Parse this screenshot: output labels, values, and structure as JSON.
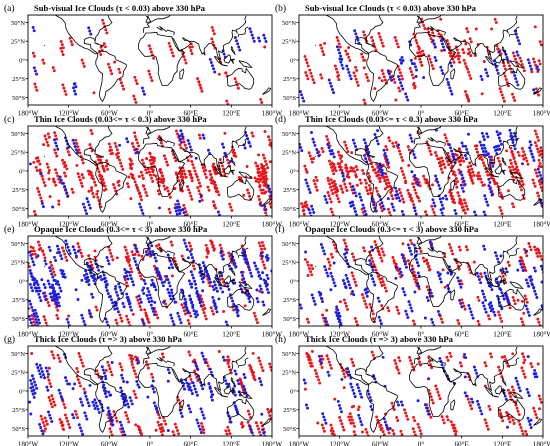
{
  "figure": {
    "x_tick_labels": [
      "180°W",
      "120°W",
      "60°W",
      "0°",
      "60°E",
      "120°E",
      "180°W"
    ],
    "y_tick_labels": [
      "50°N",
      "25°N",
      "0°",
      "25°S",
      "50°S"
    ],
    "colors": {
      "red": "#e8141c",
      "blue": "#1d1de0",
      "coast": "#000000"
    }
  },
  "panels": [
    {
      "label": "(a)",
      "title": "Sub-visual Ice Clouds (τ < 0.03) above 330 hPa",
      "red_density": "low",
      "blue_density": "very low"
    },
    {
      "label": "(b)",
      "title": "Sub-visual Ice Clouds (τ < 0.03) above 330 hPa",
      "red_density": "medium",
      "blue_density": "low"
    },
    {
      "label": "(c)",
      "title": "Thin Ice Clouds (0.03<= τ < 0.3) above 330 hPa",
      "red_density": "high",
      "blue_density": "low"
    },
    {
      "label": "(d)",
      "title": "Thin Ice Clouds (0.03<= τ < 0.3) above 330 hPa",
      "red_density": "high",
      "blue_density": "medium"
    },
    {
      "label": "(e)",
      "title": "Opaque Ice Clouds (0.3<= τ < 3) above 330 hPa",
      "red_density": "medium",
      "blue_density": "high"
    },
    {
      "label": "(f)",
      "title": "Opaque Ice Clouds (0.3<= τ < 3) above 330 hPa",
      "red_density": "medium",
      "blue_density": "medium"
    },
    {
      "label": "(g)",
      "title": "Thick Ice Clouds (τ => 3) above 330 hPa",
      "red_density": "medium",
      "blue_density": "medium"
    },
    {
      "label": "(h)",
      "title": "Thick Ice Clouds (τ => 3) above 330 hPa",
      "red_density": "medium",
      "blue_density": "low"
    }
  ]
}
